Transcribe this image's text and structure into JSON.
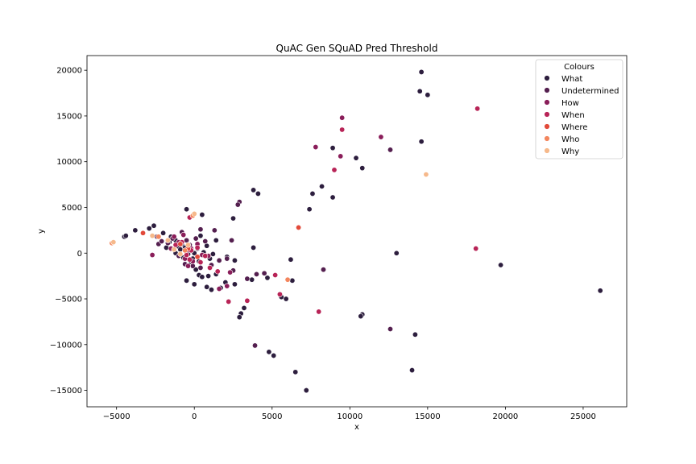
{
  "chart_data": {
    "type": "scatter",
    "title": "QuAC Gen SQuAD Pred Threshold",
    "xlabel": "x",
    "ylabel": "y",
    "xlim": [
      -6900,
      27800
    ],
    "ylim": [
      -16800,
      21600
    ],
    "xticks": [
      -5000,
      0,
      5000,
      10000,
      15000,
      20000,
      25000
    ],
    "yticks": [
      -15000,
      -10000,
      -5000,
      0,
      5000,
      10000,
      15000,
      20000
    ],
    "grid": false,
    "legend": {
      "title": "Colours",
      "position": "top-right"
    },
    "series": [
      {
        "name": "What",
        "color": "#2d1e3e",
        "points": [
          [
            14600,
            19800
          ],
          [
            14500,
            17700
          ],
          [
            15000,
            17300
          ],
          [
            14600,
            12200
          ],
          [
            8900,
            11500
          ],
          [
            10400,
            10400
          ],
          [
            10800,
            9300
          ],
          [
            3800,
            6900
          ],
          [
            4100,
            6500
          ],
          [
            7600,
            6500
          ],
          [
            8900,
            6100
          ],
          [
            8200,
            7300
          ],
          [
            -500,
            4800
          ],
          [
            7400,
            4800
          ],
          [
            500,
            4200
          ],
          [
            2500,
            3800
          ],
          [
            -3800,
            2500
          ],
          [
            -4500,
            1800
          ],
          [
            -4400,
            1900
          ],
          [
            -2900,
            2700
          ],
          [
            -2600,
            3000
          ],
          [
            -2000,
            2200
          ],
          [
            -1500,
            1800
          ],
          [
            -1200,
            1400
          ],
          [
            -800,
            1000
          ],
          [
            -600,
            600
          ],
          [
            -300,
            300
          ],
          [
            0,
            0
          ],
          [
            200,
            500
          ],
          [
            400,
            1900
          ],
          [
            800,
            800
          ],
          [
            1400,
            1400
          ],
          [
            2100,
            -400
          ],
          [
            2600,
            -800
          ],
          [
            3800,
            600
          ],
          [
            6200,
            -700
          ],
          [
            13000,
            0
          ],
          [
            19700,
            -1300
          ],
          [
            26100,
            -4100
          ],
          [
            -700,
            -500
          ],
          [
            -200,
            -1000
          ],
          [
            100,
            -1800
          ],
          [
            300,
            -2400
          ],
          [
            -500,
            -3000
          ],
          [
            0,
            -3400
          ],
          [
            800,
            -3700
          ],
          [
            1100,
            -4000
          ],
          [
            1700,
            -3800
          ],
          [
            2000,
            -3200
          ],
          [
            2600,
            -3400
          ],
          [
            3700,
            -2900
          ],
          [
            4700,
            -2700
          ],
          [
            6300,
            -3000
          ],
          [
            5600,
            -4800
          ],
          [
            5900,
            -5000
          ],
          [
            3200,
            -6000
          ],
          [
            3000,
            -6600
          ],
          [
            2900,
            -7000
          ],
          [
            10800,
            -6700
          ],
          [
            10700,
            -6900
          ],
          [
            14200,
            -8900
          ],
          [
            4800,
            -10800
          ],
          [
            5100,
            -11200
          ],
          [
            6500,
            -13000
          ],
          [
            14000,
            -12800
          ],
          [
            7200,
            -15000
          ],
          [
            -1600,
            1200
          ],
          [
            -1000,
            700
          ],
          [
            -400,
            -100
          ],
          [
            600,
            100
          ],
          [
            1000,
            -600
          ],
          [
            1200,
            -100
          ],
          [
            -1200,
            0
          ],
          [
            -900,
            400
          ],
          [
            -1800,
            600
          ],
          [
            300,
            -900
          ],
          [
            -100,
            -600
          ],
          [
            500,
            -2600
          ],
          [
            900,
            -2500
          ],
          [
            1400,
            -2300
          ]
        ]
      },
      {
        "name": "Undetermined",
        "color": "#541f4f",
        "points": [
          [
            2900,
            5600
          ],
          [
            2800,
            5300
          ],
          [
            -2300,
            1000
          ],
          [
            -2100,
            1300
          ],
          [
            -1400,
            1600
          ],
          [
            -800,
            2300
          ],
          [
            -500,
            1400
          ],
          [
            100,
            1600
          ],
          [
            700,
            1300
          ],
          [
            1300,
            2500
          ],
          [
            2400,
            1400
          ],
          [
            400,
            2600
          ],
          [
            -1000,
            -300
          ],
          [
            -600,
            -1200
          ],
          [
            -100,
            -1400
          ],
          [
            400,
            -1600
          ],
          [
            1100,
            -1300
          ],
          [
            1600,
            -800
          ],
          [
            2100,
            -600
          ],
          [
            2500,
            -1900
          ],
          [
            3400,
            -2800
          ],
          [
            4000,
            -2300
          ],
          [
            4500,
            -2200
          ],
          [
            8300,
            -1800
          ],
          [
            12600,
            -8300
          ],
          [
            3900,
            -10100
          ],
          [
            12600,
            11300
          ],
          [
            -2400,
            1800
          ],
          [
            -1700,
            1100
          ],
          [
            -300,
            900
          ]
        ]
      },
      {
        "name": "How",
        "color": "#8a1e5a",
        "points": [
          [
            9500,
            14800
          ],
          [
            12000,
            12700
          ],
          [
            7800,
            11600
          ],
          [
            9400,
            10600
          ],
          [
            -2700,
            -200
          ],
          [
            -1300,
            1800
          ],
          [
            -700,
            2000
          ],
          [
            -1000,
            1200
          ],
          [
            -500,
            200
          ],
          [
            -200,
            500
          ],
          [
            200,
            1000
          ],
          [
            500,
            -200
          ],
          [
            -400,
            -1400
          ],
          [
            -100,
            -900
          ],
          [
            2100,
            -3600
          ],
          [
            1600,
            -3900
          ],
          [
            2300,
            -2100
          ],
          [
            900,
            -300
          ],
          [
            -600,
            -600
          ],
          [
            -1500,
            500
          ]
        ]
      },
      {
        "name": "When",
        "color": "#b82457",
        "points": [
          [
            9500,
            13500
          ],
          [
            9000,
            9100
          ],
          [
            18200,
            15800
          ],
          [
            18100,
            500
          ],
          [
            -300,
            3900
          ],
          [
            -800,
            1200
          ],
          [
            -500,
            -200
          ],
          [
            -200,
            300
          ],
          [
            200,
            600
          ],
          [
            700,
            -300
          ],
          [
            1000,
            -1600
          ],
          [
            1500,
            -2000
          ],
          [
            2200,
            -5300
          ],
          [
            3400,
            -5200
          ],
          [
            5200,
            -2400
          ],
          [
            5500,
            -4500
          ],
          [
            8000,
            -6400
          ],
          [
            -1200,
            900
          ],
          [
            -300,
            -700
          ],
          [
            400,
            -1000
          ]
        ]
      },
      {
        "name": "Where",
        "color": "#e24a3a",
        "points": [
          [
            6700,
            2800
          ],
          [
            -3300,
            2200
          ],
          [
            -400,
            500
          ],
          [
            200,
            -400
          ],
          [
            -900,
            1000
          ]
        ]
      },
      {
        "name": "Who",
        "color": "#f3865e",
        "points": [
          [
            -5300,
            1100
          ],
          [
            6000,
            -2900
          ],
          [
            -2300,
            1800
          ],
          [
            -100,
            4100
          ],
          [
            -600,
            300
          ]
        ]
      },
      {
        "name": "Why",
        "color": "#f6b98b",
        "points": [
          [
            14900,
            8600
          ],
          [
            -5200,
            1200
          ],
          [
            -2700,
            1900
          ],
          [
            0,
            4300
          ],
          [
            -1700,
            1400
          ],
          [
            -1300,
            400
          ],
          [
            -400,
            900
          ],
          [
            -900,
            -100
          ]
        ]
      }
    ]
  }
}
